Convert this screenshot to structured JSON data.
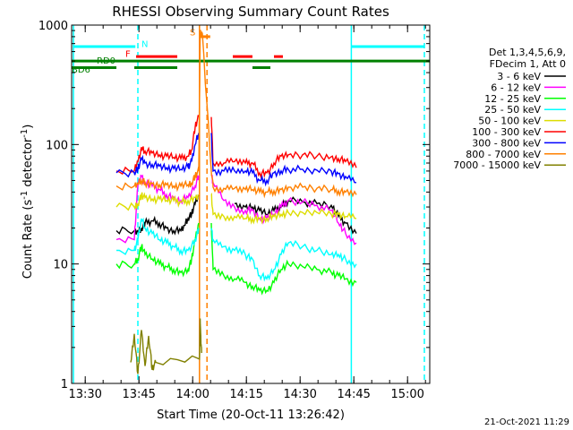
{
  "chart_data": {
    "type": "line",
    "title": "RHESSI Observing Summary Count Rates",
    "xlabel": "Start Time (20-Oct-11 13:26:42)",
    "ylabel_main": "Count Rate (s",
    "ylabel_sup1": "-1",
    "ylabel_mid": " detector",
    "ylabel_sup2": "-1",
    "ylabel_end": ")",
    "timestamp": "21-Oct-2021 11:29",
    "x_ticks": [
      {
        "label": "13:30",
        "min": 3.3
      },
      {
        "label": "13:45",
        "min": 18.3
      },
      {
        "label": "14:00",
        "min": 33.3
      },
      {
        "label": "14:15",
        "min": 48.3
      },
      {
        "label": "14:30",
        "min": 63.3
      },
      {
        "label": "14:45",
        "min": 78.3
      },
      {
        "label": "15:00",
        "min": 93.3
      }
    ],
    "xlim": [
      -0.5,
      99.5
    ],
    "ylim": [
      1,
      1000
    ],
    "y_scale": "log",
    "y_ticks": [
      {
        "label": "1",
        "value": 1
      },
      {
        "label": "10",
        "value": 10
      },
      {
        "label": "100",
        "value": 100
      },
      {
        "label": "1000",
        "value": 1000
      }
    ],
    "legend_header": [
      "Det 1,3,4,5,6,9,",
      "FDecim 1, Att 0"
    ],
    "series": [
      {
        "name": "3 - 6 keV",
        "color": "#000000",
        "points": [
          [
            12,
            19
          ],
          [
            17,
            19
          ],
          [
            18,
            19
          ],
          [
            19,
            20
          ],
          [
            20,
            22
          ],
          [
            22,
            23
          ],
          [
            24,
            22
          ],
          [
            26,
            20
          ],
          [
            28,
            19
          ],
          [
            30,
            19
          ],
          [
            31,
            21
          ],
          [
            32,
            24
          ],
          [
            33,
            26
          ],
          [
            34,
            32
          ],
          [
            35,
            37
          ],
          [
            38.5,
            37
          ],
          [
            45,
            32
          ],
          [
            48,
            30
          ],
          [
            50,
            30
          ],
          [
            52,
            28
          ],
          [
            54,
            26
          ],
          [
            56,
            28
          ],
          [
            58,
            30
          ],
          [
            60,
            34
          ],
          [
            64,
            33
          ],
          [
            68,
            32
          ],
          [
            72,
            31
          ],
          [
            74,
            25
          ],
          [
            76,
            22
          ],
          [
            79,
            18
          ]
        ],
        "gaps": [
          [
            35.5,
            37
          ],
          [
            38.5,
            39
          ]
        ]
      },
      {
        "name": "6 - 12 keV",
        "color": "#ff00ff",
        "points": [
          [
            12,
            16
          ],
          [
            17,
            16
          ],
          [
            18,
            45
          ],
          [
            19,
            55
          ],
          [
            20,
            48
          ],
          [
            22,
            45
          ],
          [
            24,
            42
          ],
          [
            26,
            38
          ],
          [
            28,
            36
          ],
          [
            30,
            34
          ],
          [
            32,
            36
          ],
          [
            34,
            45
          ],
          [
            35,
            55
          ],
          [
            38.5,
            55
          ],
          [
            39,
            48
          ],
          [
            42,
            34
          ],
          [
            45,
            30
          ],
          [
            48,
            28
          ],
          [
            50,
            28
          ],
          [
            52,
            24
          ],
          [
            54,
            24
          ],
          [
            56,
            26
          ],
          [
            58,
            30
          ],
          [
            60,
            34
          ],
          [
            64,
            33
          ],
          [
            68,
            31
          ],
          [
            72,
            28
          ],
          [
            74,
            22
          ],
          [
            76,
            18
          ],
          [
            79,
            15
          ]
        ],
        "gaps": [
          [
            35.5,
            38.5
          ]
        ]
      },
      {
        "name": "12 - 25 keV",
        "color": "#00ff00",
        "points": [
          [
            12,
            10
          ],
          [
            17,
            10
          ],
          [
            18,
            11
          ],
          [
            19,
            14
          ],
          [
            20,
            12
          ],
          [
            22,
            11
          ],
          [
            24,
            10
          ],
          [
            26,
            9.5
          ],
          [
            28,
            9
          ],
          [
            30,
            8.5
          ],
          [
            32,
            9
          ],
          [
            33,
            11
          ],
          [
            34,
            16
          ],
          [
            35,
            22
          ],
          [
            38.5,
            22
          ],
          [
            39,
            9
          ],
          [
            42,
            8
          ],
          [
            45,
            7.5
          ],
          [
            48,
            7
          ],
          [
            50,
            6.5
          ],
          [
            52,
            6.0
          ],
          [
            54,
            6.0
          ],
          [
            56,
            7
          ],
          [
            58,
            9
          ],
          [
            60,
            10
          ],
          [
            64,
            9.5
          ],
          [
            68,
            9
          ],
          [
            72,
            8.5
          ],
          [
            74,
            8
          ],
          [
            76,
            7.5
          ],
          [
            79,
            7
          ]
        ],
        "gaps": [
          [
            35.5,
            38.5
          ]
        ]
      },
      {
        "name": "25 - 50 keV",
        "color": "#00ffff",
        "points": [
          [
            12,
            13
          ],
          [
            17,
            13
          ],
          [
            18,
            16
          ],
          [
            19,
            24
          ],
          [
            20,
            20
          ],
          [
            22,
            18
          ],
          [
            24,
            16
          ],
          [
            26,
            15
          ],
          [
            28,
            14
          ],
          [
            30,
            13
          ],
          [
            32,
            13
          ],
          [
            34,
            16
          ],
          [
            35,
            20
          ],
          [
            38.5,
            20
          ],
          [
            39,
            16
          ],
          [
            42,
            14
          ],
          [
            45,
            13
          ],
          [
            48,
            12
          ],
          [
            50,
            11
          ],
          [
            52,
            8
          ],
          [
            54,
            7.5
          ],
          [
            56,
            9
          ],
          [
            58,
            12
          ],
          [
            60,
            15
          ],
          [
            64,
            14
          ],
          [
            68,
            13
          ],
          [
            72,
            12
          ],
          [
            74,
            12
          ],
          [
            76,
            11
          ],
          [
            79,
            10
          ]
        ],
        "gaps": [
          [
            35.5,
            38.5
          ]
        ]
      },
      {
        "name": "50 - 100 keV",
        "color": "#dddd00",
        "points": [
          [
            12,
            30
          ],
          [
            17,
            30
          ],
          [
            18,
            32
          ],
          [
            19,
            38
          ],
          [
            20,
            36
          ],
          [
            22,
            35
          ],
          [
            24,
            35
          ],
          [
            26,
            34
          ],
          [
            28,
            34
          ],
          [
            30,
            33
          ],
          [
            32,
            34
          ],
          [
            34,
            36
          ],
          [
            35,
            38
          ],
          [
            38.5,
            38
          ],
          [
            39,
            26
          ],
          [
            42,
            25
          ],
          [
            45,
            25
          ],
          [
            48,
            24
          ],
          [
            50,
            24
          ],
          [
            52,
            24
          ],
          [
            54,
            24
          ],
          [
            56,
            25
          ],
          [
            58,
            26
          ],
          [
            60,
            27
          ],
          [
            64,
            27
          ],
          [
            68,
            27
          ],
          [
            72,
            26
          ],
          [
            74,
            26
          ],
          [
            76,
            25
          ],
          [
            79,
            24
          ]
        ],
        "gaps": [
          [
            35.5,
            38.5
          ]
        ]
      },
      {
        "name": "100 - 300 keV",
        "color": "#ff0000",
        "points": [
          [
            12,
            60
          ],
          [
            17,
            60
          ],
          [
            18,
            72
          ],
          [
            19,
            95
          ],
          [
            20,
            88
          ],
          [
            22,
            85
          ],
          [
            24,
            82
          ],
          [
            26,
            80
          ],
          [
            28,
            78
          ],
          [
            30,
            76
          ],
          [
            32,
            80
          ],
          [
            33,
            90
          ],
          [
            34,
            140
          ],
          [
            35,
            170
          ],
          [
            38.5,
            170
          ],
          [
            39,
            70
          ],
          [
            42,
            70
          ],
          [
            45,
            72
          ],
          [
            48,
            70
          ],
          [
            50,
            70
          ],
          [
            52,
            58
          ],
          [
            54,
            58
          ],
          [
            56,
            70
          ],
          [
            58,
            80
          ],
          [
            60,
            82
          ],
          [
            64,
            82
          ],
          [
            68,
            80
          ],
          [
            72,
            79
          ],
          [
            74,
            76
          ],
          [
            76,
            72
          ],
          [
            79,
            64
          ]
        ],
        "gaps": [
          [
            35.5,
            38.5
          ]
        ]
      },
      {
        "name": "300 - 800 keV",
        "color": "#0000ff",
        "points": [
          [
            12,
            58
          ],
          [
            17,
            58
          ],
          [
            18,
            62
          ],
          [
            19,
            75
          ],
          [
            20,
            70
          ],
          [
            22,
            68
          ],
          [
            24,
            66
          ],
          [
            26,
            64
          ],
          [
            28,
            63
          ],
          [
            30,
            62
          ],
          [
            32,
            65
          ],
          [
            33,
            72
          ],
          [
            34,
            100
          ],
          [
            35,
            125
          ],
          [
            38.5,
            125
          ],
          [
            39,
            60
          ],
          [
            42,
            60
          ],
          [
            45,
            60
          ],
          [
            48,
            60
          ],
          [
            50,
            58
          ],
          [
            52,
            50
          ],
          [
            54,
            50
          ],
          [
            56,
            58
          ],
          [
            58,
            60
          ],
          [
            60,
            62
          ],
          [
            64,
            62
          ],
          [
            68,
            61
          ],
          [
            72,
            60
          ],
          [
            74,
            57
          ],
          [
            76,
            54
          ],
          [
            79,
            48
          ]
        ],
        "gaps": [
          [
            35.5,
            38.5
          ]
        ]
      },
      {
        "name": "800 - 7000 keV",
        "color": "#ff8000",
        "points": [
          [
            12,
            45
          ],
          [
            17,
            45
          ],
          [
            18,
            47
          ],
          [
            19,
            50
          ],
          [
            20,
            48
          ],
          [
            22,
            47
          ],
          [
            24,
            46
          ],
          [
            26,
            46
          ],
          [
            28,
            45
          ],
          [
            30,
            45
          ],
          [
            32,
            46
          ],
          [
            33,
            48
          ],
          [
            34,
            55
          ],
          [
            35,
            60
          ],
          [
            35.4,
            850
          ],
          [
            36,
            850
          ],
          [
            38.5,
            60
          ],
          [
            39,
            44
          ],
          [
            42,
            43
          ],
          [
            45,
            43
          ],
          [
            48,
            42
          ],
          [
            50,
            42
          ],
          [
            52,
            40
          ],
          [
            54,
            40
          ],
          [
            56,
            41
          ],
          [
            58,
            42
          ],
          [
            60,
            44
          ],
          [
            64,
            44
          ],
          [
            68,
            43
          ],
          [
            72,
            42
          ],
          [
            74,
            41
          ],
          [
            76,
            40
          ],
          [
            79,
            38
          ]
        ],
        "gaps": []
      },
      {
        "name": "7000 - 15000 keV",
        "color": "#808000",
        "points": [
          [
            16,
            1.5
          ],
          [
            17,
            2.6
          ],
          [
            18,
            1.2
          ],
          [
            19,
            2.8
          ],
          [
            20,
            1.4
          ],
          [
            21,
            2.5
          ],
          [
            22,
            1.3
          ],
          [
            23,
            1.5
          ],
          [
            35.2,
            1.6
          ],
          [
            35.4,
            3.5
          ],
          [
            35.6,
            2.2
          ],
          [
            35.8,
            1.8
          ]
        ],
        "gaps": []
      }
    ],
    "vertical_lines": [
      {
        "x": 0,
        "color": "#00ffff",
        "dashed": false
      },
      {
        "x": 18,
        "color": "#00ffff",
        "dashed": true
      },
      {
        "x": 35.2,
        "color": "#ff8000",
        "dashed": false
      },
      {
        "x": 37.3,
        "color": "#ff8000",
        "dashed": true
      },
      {
        "x": 77.6,
        "color": "#00ffff",
        "dashed": false
      },
      {
        "x": 98,
        "color": "#00ffff",
        "dashed": true
      }
    ],
    "flag_bars": [
      {
        "label": "N",
        "color": "#00ffff",
        "y": 660,
        "segments": [
          [
            0,
            17.3
          ],
          [
            77.6,
            98
          ]
        ],
        "label_x": 19,
        "label_y": 700
      },
      {
        "label": "S",
        "color": "#ff8000",
        "y": 800,
        "segments": [
          [
            35.3,
            38.2
          ]
        ],
        "label_x": 32.5,
        "label_y": 880
      },
      {
        "label": "F",
        "color": "#ff0000",
        "y": 545,
        "segments": [
          [
            17.5,
            29
          ],
          [
            44.5,
            50
          ],
          [
            56,
            58.5
          ]
        ],
        "label_x": 14.5,
        "label_y": 580
      },
      {
        "label": "RD0",
        "color": "#008000",
        "y": 500,
        "segments": [
          [
            -0.5,
            99.5
          ]
        ],
        "label_x": 6.5,
        "label_y": 510
      },
      {
        "label": "BD6",
        "color": "#008000",
        "y": 440,
        "segments": [
          [
            -0.5,
            12
          ],
          [
            17,
            29
          ],
          [
            50,
            55
          ]
        ],
        "label_x": -0.5,
        "label_y": 430
      }
    ]
  }
}
